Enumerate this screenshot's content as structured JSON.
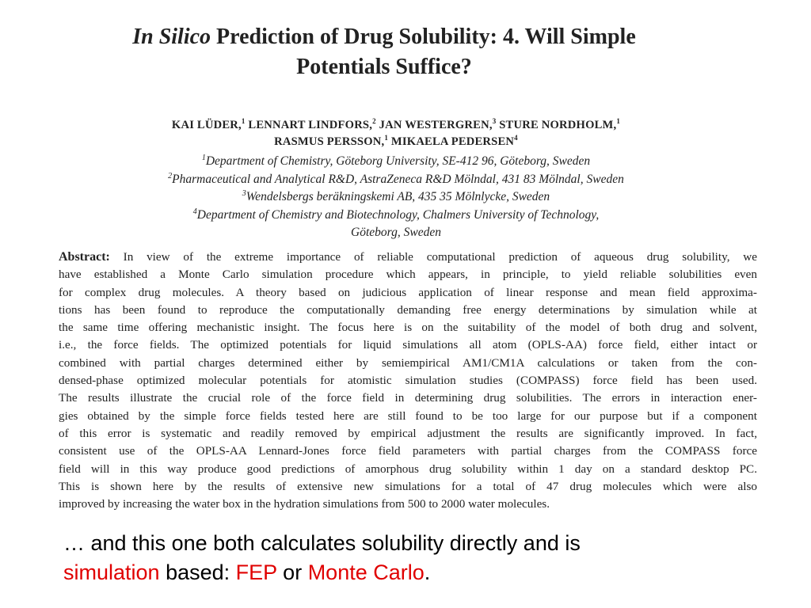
{
  "paper": {
    "title_italic": "In Silico",
    "title_line1_rest": " Prediction of Drug Solubility: 4. Will Simple",
    "title_line2": "Potentials Suffice?",
    "authors_line1": [
      {
        "name": "KAI LÜDER,",
        "sup": "1"
      },
      {
        "name": " LENNART LINDFORS,",
        "sup": "2"
      },
      {
        "name": " JAN WESTERGREN,",
        "sup": "3"
      },
      {
        "name": " STURE NORDHOLM,",
        "sup": "1"
      }
    ],
    "authors_line2": [
      {
        "name": "RASMUS PERSSON,",
        "sup": "1"
      },
      {
        "name": " MIKAELA PEDERSEN",
        "sup": "4"
      }
    ],
    "affiliations": [
      {
        "sup": "1",
        "text": "Department of Chemistry, Göteborg University, SE-412 96, Göteborg, Sweden"
      },
      {
        "sup": "2",
        "text": "Pharmaceutical and Analytical R&D, AstraZeneca R&D Mölndal, 431 83 Mölndal, Sweden"
      },
      {
        "sup": "3",
        "text": "Wendelsbergs beräkningskemi AB, 435 35 Mölnlycke, Sweden"
      },
      {
        "sup": "4",
        "text": "Department of Chemistry and Biotechnology, Chalmers University of Technology,"
      },
      {
        "sup": "",
        "text": "Göteborg, Sweden"
      }
    ],
    "abstract_label": "Abstract:",
    "abstract_lines": [
      " In view of the extreme importance of reliable computational prediction of aqueous drug solubility, we",
      "have established a Monte Carlo simulation procedure which appears, in principle, to yield reliable solubilities even",
      "for complex drug molecules. A theory based on judicious application of linear response and mean field approxima-",
      "tions has been found to reproduce the computationally demanding free energy determinations by simulation while at",
      "the same time offering mechanistic insight. The focus here is on the suitability of the model of both drug and solvent,",
      "i.e., the force fields. The optimized potentials for liquid simulations all atom (OPLS-AA) force field, either intact or",
      "combined with partial charges determined either by semiempirical AM1/CM1A calculations or taken from the con-",
      "densed-phase optimized molecular potentials for atomistic simulation studies (COMPASS) force field has been used.",
      "The results illustrate the crucial role of the force field in determining drug solubilities. The errors in interaction ener-",
      "gies obtained by the simple force fields tested here are still found to be too large for our purpose but if a component",
      "of this error is systematic and readily removed by empirical adjustment the results are significantly improved. In fact,",
      "consistent use of the OPLS-AA Lennard-Jones force field parameters with partial charges from the COMPASS force",
      "field will in this way produce good predictions of amorphous drug solubility within 1 day on a standard desktop PC.",
      "This is shown here by the results of extensive new simulations for a total of 47 drug molecules which were also",
      "improved by increasing the water box in the hydration simulations from 500 to 2000 water molecules."
    ]
  },
  "caption": {
    "line1": "… and this one both calculates solubility directly and is",
    "word_simulation": "simulation",
    "text_based": " based: ",
    "word_fep": "FEP",
    "text_or": " or ",
    "word_monte_carlo": "Monte Carlo",
    "text_period": "."
  },
  "colors": {
    "highlight": "#e00000",
    "text": "#000000",
    "paper_text": "#222222"
  }
}
